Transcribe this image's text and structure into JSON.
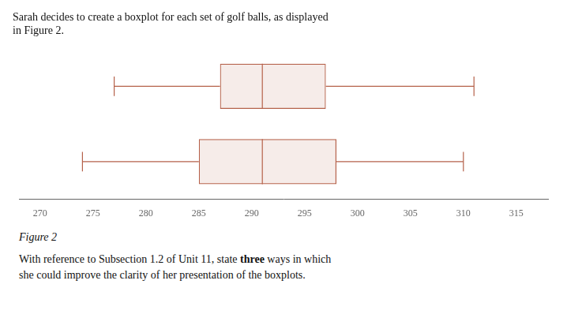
{
  "chart_data": {
    "type": "boxplot",
    "orientation": "horizontal",
    "title": [
      "Sarah decides to create a boxplot for each set of golf balls, as displayed",
      "in Figure 2."
    ],
    "values": [
      {
        "min": 277,
        "q1": 287,
        "median": 291,
        "q3": 297,
        "max": 311
      },
      {
        "min": 274,
        "q1": 285,
        "median": 291,
        "q3": 298,
        "max": 310
      }
    ],
    "xlim": [
      268,
      318
    ],
    "xticks": [
      270,
      275,
      280,
      285,
      290,
      295,
      300,
      305,
      310,
      315
    ],
    "color": "#b5614a",
    "grid": false,
    "legend": false,
    "tick_labels": "x",
    "annotations": [
      "Figure 2",
      [
        "With reference to Subsection 1.2 of Unit 11, state ",
        "three",
        " ways in which"
      ],
      "she could improve the clarity of her presentation of the boxplots."
    ]
  }
}
